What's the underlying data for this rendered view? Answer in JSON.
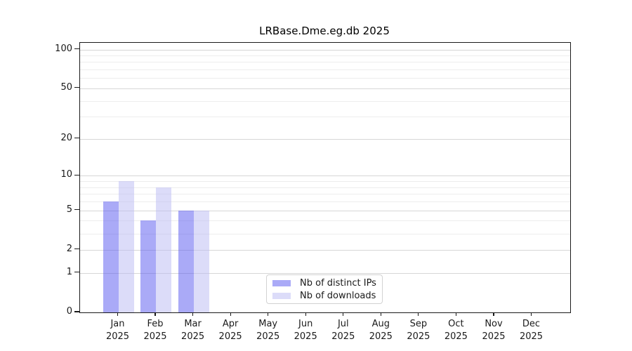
{
  "title": "LRBase.Dme.eg.db 2025",
  "colors": {
    "bar_distinct_ips": "rgba(85,85,240,0.5)",
    "bar_downloads": "rgba(185,185,243,0.5)",
    "bar_distinct_ips_solid": "#aaaaf7",
    "bar_downloads_solid": "#dcdcf9",
    "grid_major": "#d6d6d6",
    "grid_minor": "#ededed",
    "axis": "#1a1a1a"
  },
  "chart_data": {
    "type": "bar",
    "title": "LRBase.Dme.eg.db 2025",
    "categories": [
      "Jan",
      "Feb",
      "Mar",
      "Apr",
      "May",
      "Jun",
      "Jul",
      "Aug",
      "Sep",
      "Oct",
      "Nov",
      "Dec"
    ],
    "year_label": "2025",
    "series": [
      {
        "name": "Nb of distinct IPs",
        "color": "rgba(85,85,240,0.5)",
        "values": [
          6,
          4,
          5,
          0,
          0,
          0,
          0,
          0,
          0,
          0,
          0,
          0
        ]
      },
      {
        "name": "Nb of downloads",
        "color": "rgba(185,185,243,0.5)",
        "values": [
          9,
          8,
          5,
          0,
          0,
          0,
          0,
          0,
          0,
          0,
          0,
          0
        ]
      }
    ],
    "xlabel": "",
    "ylabel": "",
    "yscale": "log1p",
    "yticks": [
      0,
      1,
      2,
      5,
      10,
      20,
      50,
      100
    ],
    "yticks_minor": [
      3,
      4,
      6,
      7,
      8,
      9,
      30,
      40,
      60,
      70,
      80,
      90
    ],
    "ylim": [
      0,
      112.5
    ],
    "grid": "horizontal",
    "legend_position": "lower-center-inside"
  }
}
